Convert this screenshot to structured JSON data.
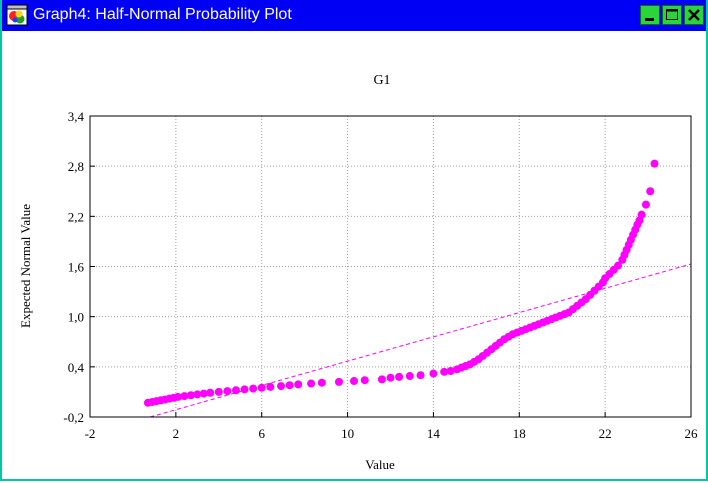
{
  "window": {
    "title": "Graph4: Half-Normal Probability Plot",
    "icon": "statistica-graph-icon",
    "controls": {
      "minimize": "minimize-icon",
      "maximize": "maximize-icon",
      "close": "close-icon"
    },
    "colors": {
      "titlebar": "#0000f4",
      "frame": "#00c8a0",
      "buttons": "#2ad43a"
    }
  },
  "chart_data": {
    "type": "scatter",
    "title": "G1",
    "xlabel": "Value",
    "ylabel": "Expected Normal Value",
    "xlim": [
      -2,
      26
    ],
    "ylim": [
      -0.2,
      3.4
    ],
    "xticks": [
      "-2",
      "2",
      "6",
      "10",
      "14",
      "18",
      "22",
      "26"
    ],
    "yticks": [
      "-0,2",
      "0,4",
      "1,0",
      "1,6",
      "2,2",
      "2,8",
      "3,4"
    ],
    "grid": true,
    "point_color": "#ff00ff",
    "reference_line": {
      "from": [
        0.8,
        -0.2
      ],
      "to": [
        26,
        1.63
      ],
      "style": "dashed",
      "color": "#ff00ff"
    },
    "points": [
      [
        0.7,
        -0.03
      ],
      [
        0.9,
        -0.02
      ],
      [
        1.1,
        -0.01
      ],
      [
        1.3,
        0.0
      ],
      [
        1.5,
        0.01
      ],
      [
        1.7,
        0.02
      ],
      [
        1.9,
        0.03
      ],
      [
        2.1,
        0.04
      ],
      [
        2.4,
        0.05
      ],
      [
        2.7,
        0.06
      ],
      [
        3.0,
        0.07
      ],
      [
        3.3,
        0.08
      ],
      [
        3.6,
        0.09
      ],
      [
        4.0,
        0.1
      ],
      [
        4.4,
        0.11
      ],
      [
        4.8,
        0.12
      ],
      [
        5.2,
        0.13
      ],
      [
        5.6,
        0.14
      ],
      [
        6.0,
        0.15
      ],
      [
        6.4,
        0.16
      ],
      [
        6.9,
        0.17
      ],
      [
        7.3,
        0.18
      ],
      [
        7.7,
        0.19
      ],
      [
        8.3,
        0.2
      ],
      [
        8.8,
        0.21
      ],
      [
        9.6,
        0.22
      ],
      [
        10.3,
        0.23
      ],
      [
        10.8,
        0.24
      ],
      [
        11.6,
        0.25
      ],
      [
        12.0,
        0.27
      ],
      [
        12.4,
        0.28
      ],
      [
        12.9,
        0.29
      ],
      [
        13.4,
        0.3
      ],
      [
        14.0,
        0.32
      ],
      [
        14.5,
        0.34
      ],
      [
        14.8,
        0.35
      ],
      [
        15.1,
        0.37
      ],
      [
        15.3,
        0.39
      ],
      [
        15.5,
        0.41
      ],
      [
        15.7,
        0.43
      ],
      [
        15.9,
        0.46
      ],
      [
        16.1,
        0.49
      ],
      [
        16.3,
        0.53
      ],
      [
        16.5,
        0.57
      ],
      [
        16.7,
        0.61
      ],
      [
        16.9,
        0.65
      ],
      [
        17.1,
        0.69
      ],
      [
        17.3,
        0.73
      ],
      [
        17.5,
        0.76
      ],
      [
        17.7,
        0.79
      ],
      [
        17.9,
        0.81
      ],
      [
        18.1,
        0.83
      ],
      [
        18.3,
        0.85
      ],
      [
        18.5,
        0.87
      ],
      [
        18.7,
        0.89
      ],
      [
        18.9,
        0.91
      ],
      [
        19.1,
        0.93
      ],
      [
        19.3,
        0.95
      ],
      [
        19.5,
        0.97
      ],
      [
        19.7,
        0.99
      ],
      [
        19.9,
        1.01
      ],
      [
        20.1,
        1.03
      ],
      [
        20.3,
        1.05
      ],
      [
        20.5,
        1.09
      ],
      [
        20.7,
        1.13
      ],
      [
        20.9,
        1.17
      ],
      [
        21.1,
        1.21
      ],
      [
        21.3,
        1.26
      ],
      [
        21.5,
        1.31
      ],
      [
        21.7,
        1.36
      ],
      [
        21.9,
        1.41
      ],
      [
        22.0,
        1.46
      ],
      [
        22.2,
        1.51
      ],
      [
        22.4,
        1.56
      ],
      [
        22.6,
        1.61
      ],
      [
        22.8,
        1.68
      ],
      [
        22.9,
        1.74
      ],
      [
        23.0,
        1.8
      ],
      [
        23.1,
        1.86
      ],
      [
        23.2,
        1.92
      ],
      [
        23.3,
        1.98
      ],
      [
        23.4,
        2.04
      ],
      [
        23.5,
        2.1
      ],
      [
        23.6,
        2.15
      ],
      [
        23.7,
        2.22
      ],
      [
        23.9,
        2.34
      ],
      [
        24.1,
        2.5
      ],
      [
        24.3,
        2.83
      ]
    ]
  }
}
